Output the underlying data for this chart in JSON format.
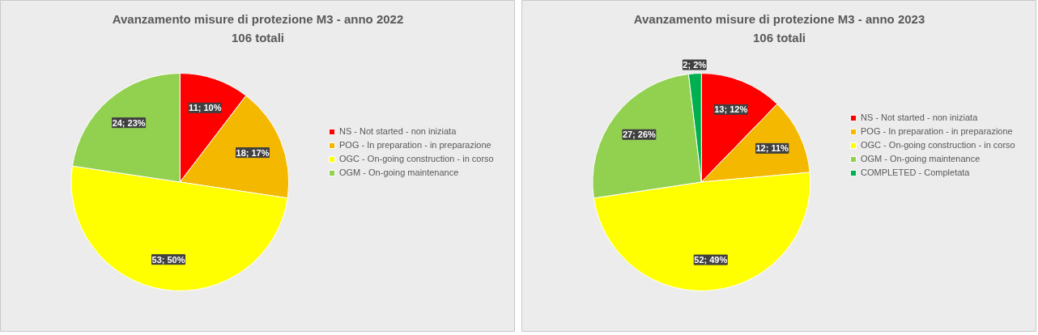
{
  "chart_data": [
    {
      "type": "pie",
      "title": "Avanzamento misure di protezione M3 - anno 2022",
      "subtitle": "106 totali",
      "categories": [
        "NS - Not started - non iniziata",
        "POG - In preparation - in preparazione",
        "OGC - On-going construction - in corso",
        "OGM - On-going maintenance"
      ],
      "values": [
        11,
        18,
        53,
        24
      ],
      "colors": [
        "#ff0000",
        "#f5b800",
        "#ffff00",
        "#92d050"
      ],
      "value_labels": [
        "11; 10%",
        "18; 17%",
        "53; 50%",
        "24; 23%"
      ],
      "legend": "right"
    },
    {
      "type": "pie",
      "title": "Avanzamento misure di protezione M3 - anno 2023",
      "subtitle": "106 totali",
      "categories": [
        "NS - Not started - non iniziata",
        "POG - In preparation - in preparazione",
        "OGC - On-going construction - in corso",
        "OGM - On-going maintenance",
        "COMPLETED - Completata"
      ],
      "values": [
        13,
        12,
        52,
        27,
        2
      ],
      "colors": [
        "#ff0000",
        "#f5b800",
        "#ffff00",
        "#92d050",
        "#00b050"
      ],
      "value_labels": [
        "13; 12%",
        "12; 11%",
        "52; 49%",
        "27; 26%",
        "2; 2%"
      ],
      "legend": "right"
    }
  ]
}
